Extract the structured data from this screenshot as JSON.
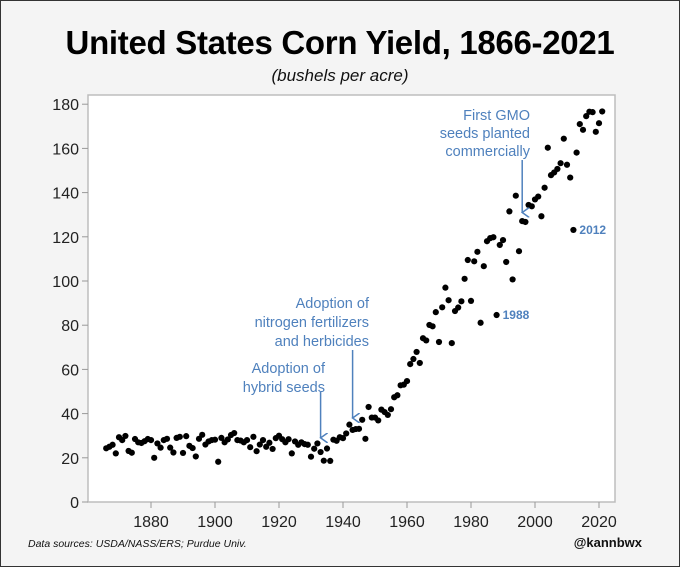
{
  "title": "United States Corn Yield, 1866-2021",
  "subtitle": "(bushels per acre)",
  "footer": {
    "source": "Data sources: USDA/NASS/ERS; Purdue Univ.",
    "handle": "@kannbwx"
  },
  "colors": {
    "annotation": "#4f81bd",
    "points": "#000000",
    "plot_bg": "#ffffff",
    "page_bg": "#f4f4f4"
  },
  "chart_data": {
    "type": "scatter",
    "title": "United States Corn Yield, 1866-2021",
    "subtitle": "(bushels per acre)",
    "xlabel": "",
    "ylabel": "",
    "xlim": [
      1863,
      2025
    ],
    "ylim": [
      0,
      180
    ],
    "x_ticks": [
      1880,
      1900,
      1920,
      1940,
      1960,
      1980,
      2000,
      2020
    ],
    "y_ticks": [
      0,
      20,
      40,
      60,
      80,
      100,
      120,
      140,
      160,
      180
    ],
    "grid": false,
    "series": [
      {
        "name": "Corn yield",
        "x": [
          1866,
          1867,
          1868,
          1869,
          1870,
          1871,
          1872,
          1873,
          1874,
          1875,
          1876,
          1877,
          1878,
          1879,
          1880,
          1881,
          1882,
          1883,
          1884,
          1885,
          1886,
          1887,
          1888,
          1889,
          1890,
          1891,
          1892,
          1893,
          1894,
          1895,
          1896,
          1897,
          1898,
          1899,
          1900,
          1901,
          1902,
          1903,
          1904,
          1905,
          1906,
          1907,
          1908,
          1909,
          1910,
          1911,
          1912,
          1913,
          1914,
          1915,
          1916,
          1917,
          1918,
          1919,
          1920,
          1921,
          1922,
          1923,
          1924,
          1925,
          1926,
          1927,
          1928,
          1929,
          1930,
          1931,
          1932,
          1933,
          1934,
          1935,
          1936,
          1937,
          1938,
          1939,
          1940,
          1941,
          1942,
          1943,
          1944,
          1945,
          1946,
          1947,
          1948,
          1949,
          1950,
          1951,
          1952,
          1953,
          1954,
          1955,
          1956,
          1957,
          1958,
          1959,
          1960,
          1961,
          1962,
          1963,
          1964,
          1965,
          1966,
          1967,
          1968,
          1969,
          1970,
          1971,
          1972,
          1973,
          1974,
          1975,
          1976,
          1977,
          1978,
          1979,
          1980,
          1981,
          1982,
          1983,
          1984,
          1985,
          1986,
          1987,
          1988,
          1989,
          1990,
          1991,
          1992,
          1993,
          1994,
          1995,
          1996,
          1997,
          1998,
          1999,
          2000,
          2001,
          2002,
          2003,
          2004,
          2005,
          2006,
          2007,
          2008,
          2009,
          2010,
          2011,
          2012,
          2013,
          2014,
          2015,
          2016,
          2017,
          2018,
          2019,
          2020,
          2021
        ],
        "y": [
          24.3,
          25.0,
          25.9,
          22.0,
          29.3,
          28.0,
          29.9,
          23.1,
          22.3,
          28.5,
          27.0,
          26.7,
          27.5,
          28.5,
          28.0,
          20.0,
          26.5,
          24.6,
          28.0,
          28.6,
          24.6,
          22.4,
          29.0,
          29.5,
          22.2,
          29.8,
          25.4,
          24.4,
          20.6,
          28.6,
          30.4,
          26.0,
          27.4,
          28.0,
          28.2,
          18.2,
          29.0,
          27.0,
          28.3,
          30.3,
          31.2,
          28.0,
          27.8,
          27.0,
          28.0,
          24.8,
          29.5,
          23.0,
          26.0,
          28.0,
          25.0,
          26.8,
          24.0,
          28.9,
          30.0,
          28.4,
          27.0,
          28.4,
          22.0,
          27.4,
          25.9,
          27.0,
          26.2,
          25.9,
          20.5,
          24.1,
          26.5,
          22.6,
          18.7,
          24.2,
          18.6,
          28.2,
          27.7,
          29.3,
          28.9,
          31.0,
          35.0,
          32.6,
          33.0,
          33.1,
          37.2,
          28.6,
          43.0,
          38.2,
          38.2,
          36.9,
          41.8,
          40.7,
          39.4,
          42.0,
          47.4,
          48.3,
          52.8,
          53.1,
          54.7,
          62.4,
          64.7,
          67.9,
          62.9,
          74.1,
          73.1,
          80.1,
          79.5,
          85.9,
          72.4,
          88.1,
          97.0,
          91.3,
          71.9,
          86.4,
          88.0,
          90.8,
          101.0,
          109.5,
          91.0,
          108.9,
          113.2,
          81.1,
          106.7,
          118.0,
          119.4,
          119.8,
          84.6,
          116.3,
          118.5,
          108.6,
          131.5,
          100.7,
          138.6,
          113.5,
          127.1,
          126.7,
          134.4,
          133.8,
          136.9,
          138.2,
          129.3,
          142.2,
          160.3,
          147.9,
          149.1,
          150.7,
          153.3,
          164.4,
          152.6,
          146.8,
          123.1,
          158.1,
          171.0,
          168.4,
          174.6,
          176.6,
          176.4,
          167.5,
          171.4,
          176.7
        ]
      }
    ],
    "annotations": [
      {
        "text_lines": [
          "Adoption of",
          "hybrid seeds"
        ],
        "arrow_year": 1933,
        "arrow_tip_value": 29
      },
      {
        "text_lines": [
          "Adoption of",
          "nitrogen fertilizers",
          "and herbicides"
        ],
        "arrow_year": 1943,
        "arrow_tip_value": 38
      },
      {
        "text_lines": [
          "First GMO",
          "seeds planted",
          "commercially"
        ],
        "arrow_year": 1996,
        "arrow_tip_value": 131
      },
      {
        "text_lines": [
          "1988"
        ],
        "point_year": 1988,
        "point_value": 84.6
      },
      {
        "text_lines": [
          "2012"
        ],
        "point_year": 2012,
        "point_value": 123.1
      }
    ]
  }
}
